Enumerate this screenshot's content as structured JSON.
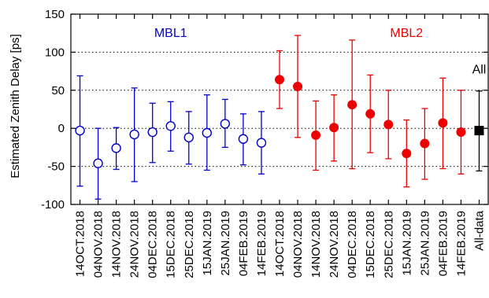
{
  "chart_data": {
    "type": "scatter",
    "ylabel": "Estimated Zenith Delay [ps]",
    "ylim": [
      -100,
      150
    ],
    "yticks": [
      -100,
      -50,
      0,
      50,
      100,
      150
    ],
    "grid": "horizontal-dotted",
    "categories": [
      "14OCT.2018",
      "04NOV.2018",
      "14NOV.2018",
      "24NOV.2018",
      "04DEC.2018",
      "15DEC.2018",
      "25DEC.2018",
      "15JAN.2019",
      "25JAN.2019",
      "04FEB.2019",
      "14FEB.2019",
      "14OCT.2018",
      "04NOV.2018",
      "14NOV.2018",
      "24NOV.2018",
      "04DEC.2018",
      "15DEC.2018",
      "25DEC.2018",
      "15JAN.2019",
      "25JAN.2019",
      "04FEB.2019",
      "14FEB.2019",
      "All-data"
    ],
    "series": [
      {
        "name": "MBL1",
        "color": "#0000cc",
        "marker": "open-circle",
        "points": [
          {
            "x": "14OCT.2018",
            "y": -3,
            "lo": -76,
            "hi": 69
          },
          {
            "x": "04NOV.2018",
            "y": -46,
            "lo": -93,
            "hi": 0
          },
          {
            "x": "14NOV.2018",
            "y": -26,
            "lo": -54,
            "hi": 1
          },
          {
            "x": "24NOV.2018",
            "y": -8,
            "lo": -70,
            "hi": 53
          },
          {
            "x": "04DEC.2018",
            "y": -5,
            "lo": -45,
            "hi": 33
          },
          {
            "x": "15DEC.2018",
            "y": 3,
            "lo": -30,
            "hi": 35
          },
          {
            "x": "25DEC.2018",
            "y": -12,
            "lo": -47,
            "hi": 22
          },
          {
            "x": "15JAN.2019",
            "y": -6,
            "lo": -55,
            "hi": 44
          },
          {
            "x": "25JAN.2019",
            "y": 6,
            "lo": -25,
            "hi": 38
          },
          {
            "x": "04FEB.2019",
            "y": -14,
            "lo": -48,
            "hi": 19
          },
          {
            "x": "14FEB.2019",
            "y": -19,
            "lo": -60,
            "hi": 22
          }
        ]
      },
      {
        "name": "MBL2",
        "color": "#ee0000",
        "marker": "filled-circle",
        "points": [
          {
            "x": "14OCT.2018",
            "y": 64,
            "lo": 26,
            "hi": 102
          },
          {
            "x": "04NOV.2018",
            "y": 55,
            "lo": -12,
            "hi": 122
          },
          {
            "x": "14NOV.2018",
            "y": -9,
            "lo": -55,
            "hi": 36
          },
          {
            "x": "24NOV.2018",
            "y": 1,
            "lo": -43,
            "hi": 44
          },
          {
            "x": "04DEC.2018",
            "y": 31,
            "lo": -53,
            "hi": 116
          },
          {
            "x": "15DEC.2018",
            "y": 19,
            "lo": -32,
            "hi": 70
          },
          {
            "x": "25DEC.2018",
            "y": 5,
            "lo": -40,
            "hi": 50
          },
          {
            "x": "15JAN.2019",
            "y": -33,
            "lo": -77,
            "hi": 11
          },
          {
            "x": "25JAN.2019",
            "y": -20,
            "lo": -67,
            "hi": 26
          },
          {
            "x": "04FEB.2019",
            "y": 7,
            "lo": -53,
            "hi": 66
          },
          {
            "x": "14FEB.2019",
            "y": -5,
            "lo": -60,
            "hi": 50
          }
        ]
      },
      {
        "name": "All",
        "color": "#000000",
        "marker": "filled-square",
        "points": [
          {
            "x": "All-data",
            "y": -3,
            "lo": -56,
            "hi": 49
          }
        ]
      }
    ]
  }
}
